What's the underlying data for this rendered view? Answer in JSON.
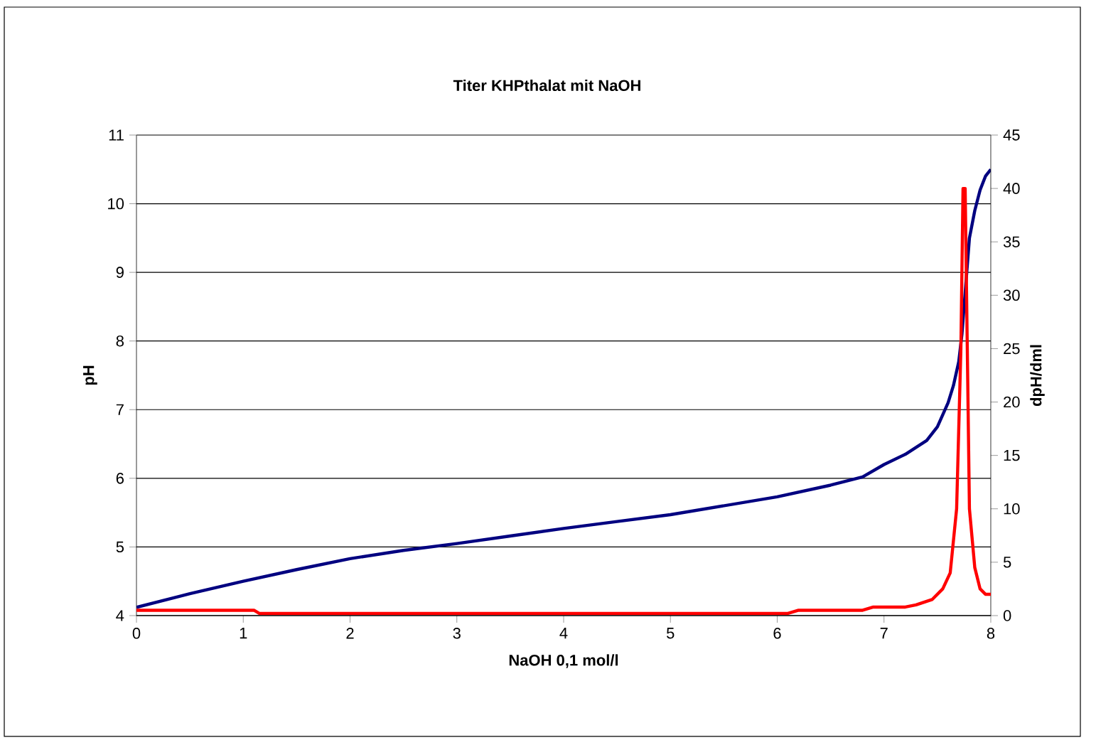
{
  "chart_data": {
    "type": "line",
    "title": "Titer KHPthalat mit NaOH",
    "xlabel": "NaOH 0,1 mol/l",
    "ylabel": "pH",
    "y2label": "dpH/dml",
    "xlim": [
      0,
      8
    ],
    "xticks": [
      0,
      1,
      2,
      3,
      4,
      5,
      6,
      7,
      8
    ],
    "ylim": [
      4,
      11
    ],
    "yticks": [
      4,
      5,
      6,
      7,
      8,
      9,
      10,
      11
    ],
    "y2lim": [
      0,
      45
    ],
    "y2ticks": [
      0,
      5,
      10,
      15,
      20,
      25,
      30,
      35,
      40,
      45
    ],
    "grid": "y",
    "marker": "none",
    "series": [
      {
        "color": "#000080",
        "x": [
          0,
          0.5,
          1,
          1.5,
          2,
          2.5,
          3,
          3.5,
          4,
          4.5,
          5,
          5.5,
          6,
          6.5,
          6.8,
          7,
          7.2,
          7.3,
          7.4,
          7.5,
          7.6,
          7.65,
          7.7,
          7.73,
          7.75,
          7.78,
          7.8,
          7.85,
          7.9,
          7.95,
          8
        ],
        "values": [
          4.12,
          4.32,
          4.5,
          4.67,
          4.83,
          4.95,
          5.05,
          5.16,
          5.27,
          5.37,
          5.47,
          5.6,
          5.73,
          5.9,
          6.02,
          6.2,
          6.35,
          6.45,
          6.55,
          6.75,
          7.1,
          7.35,
          7.7,
          8.1,
          8.5,
          9.1,
          9.5,
          9.9,
          10.2,
          10.4,
          10.5
        ]
      },
      {
        "color": "#ff0000",
        "axis": "y2",
        "x": [
          0,
          1.1,
          1.15,
          6.1,
          6.2,
          6.8,
          6.9,
          7.2,
          7.3,
          7.45,
          7.55,
          7.62,
          7.68,
          7.72,
          7.74,
          7.76,
          7.78,
          7.8,
          7.85,
          7.9,
          7.95,
          8
        ],
        "values": [
          0.5,
          0.5,
          0.2,
          0.2,
          0.5,
          0.5,
          0.8,
          0.8,
          1.0,
          1.5,
          2.5,
          4.0,
          10,
          25,
          40,
          40,
          25,
          10,
          4.5,
          2.5,
          2.0,
          2.0
        ]
      }
    ]
  }
}
